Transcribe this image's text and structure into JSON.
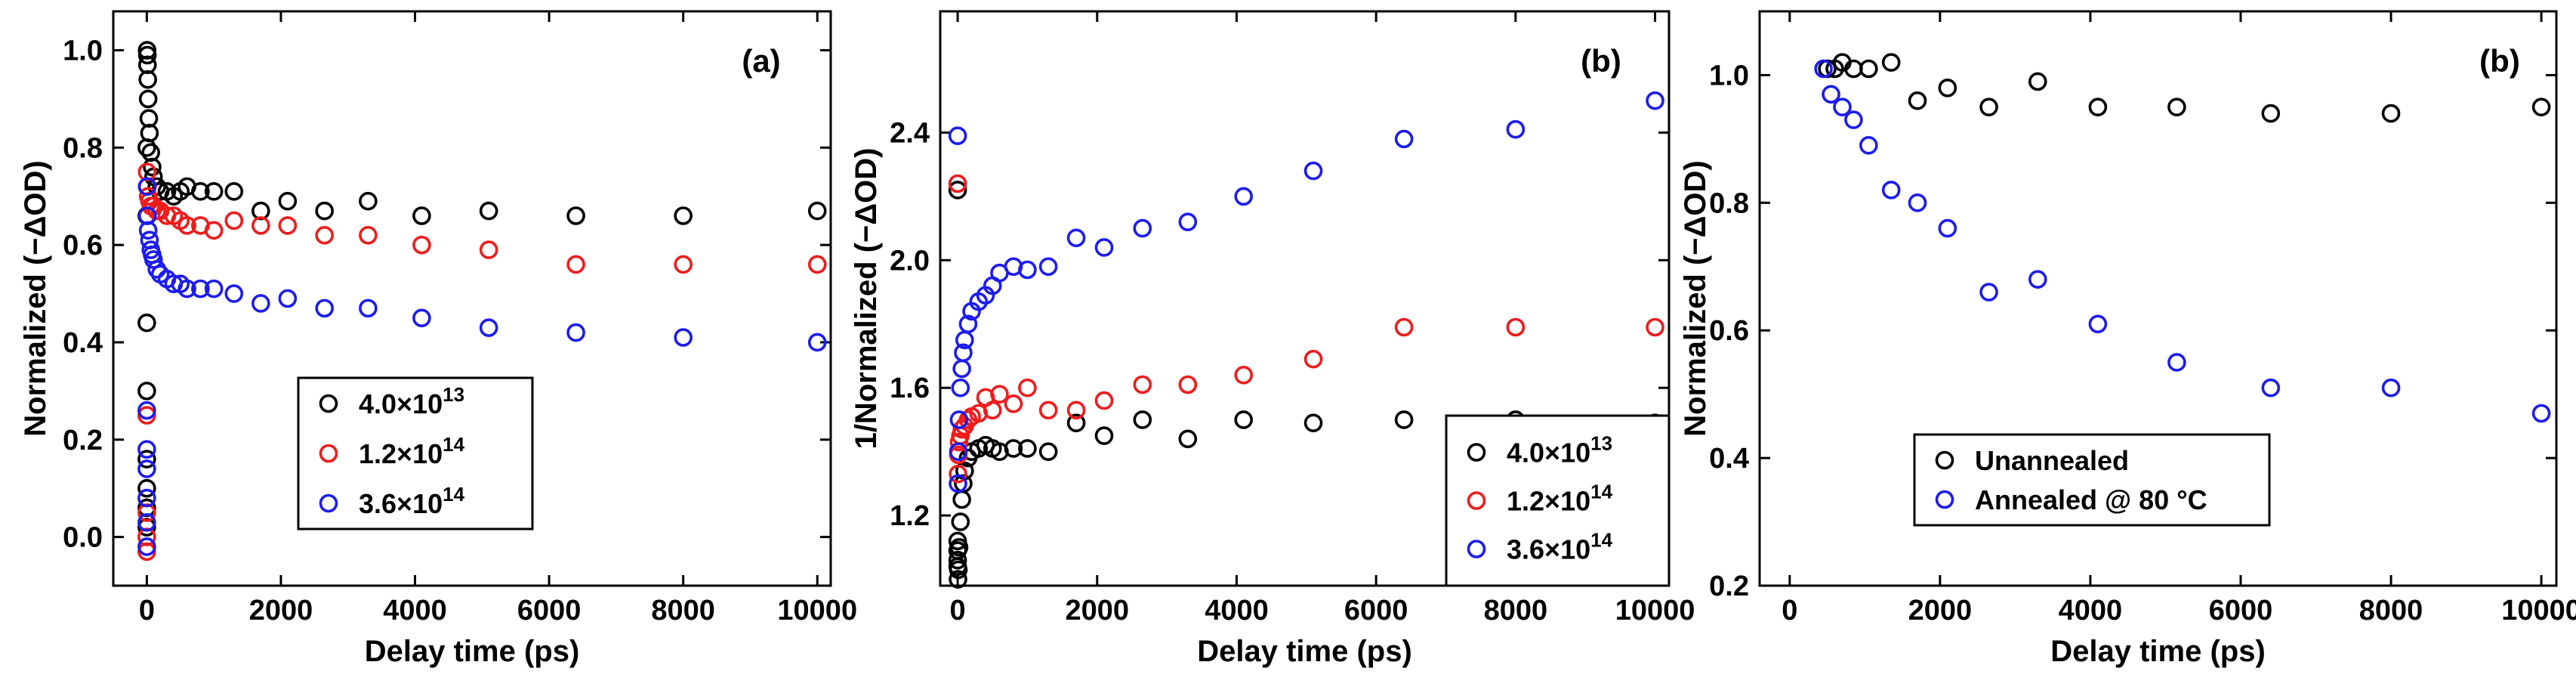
{
  "chart_data": [
    {
      "type": "scatter",
      "panel_label": "(a)",
      "xlabel": "Delay time (ps)",
      "ylabel": "Normalized (−ΔOD)",
      "xlim": [
        -500,
        10200
      ],
      "ylim": [
        -0.1,
        1.08
      ],
      "xticks": [
        0,
        2000,
        4000,
        6000,
        8000,
        10000
      ],
      "yticks": [
        0.0,
        0.2,
        0.4,
        0.6,
        0.8,
        1.0
      ],
      "xtick_labels": [
        "0",
        "2000",
        "4000",
        "6000",
        "8000",
        "10000"
      ],
      "ytick_labels": [
        "0.0",
        "0.2",
        "0.4",
        "0.6",
        "0.8",
        "1.0"
      ],
      "legend_position": "center-left",
      "series": [
        {
          "name": "4.0×10",
          "name_sup": "13",
          "color": "#000000",
          "x": [
            0,
            0,
            0,
            0,
            0,
            0,
            0,
            0,
            5,
            8,
            10,
            15,
            20,
            30,
            40,
            60,
            80,
            100,
            150,
            200,
            300,
            400,
            500,
            600,
            800,
            1000,
            1300,
            1700,
            2100,
            2650,
            3300,
            4100,
            5100,
            6400,
            8000,
            10000
          ],
          "y": [
            0.02,
            0.06,
            0.1,
            0.16,
            0.3,
            0.44,
            0.66,
            0.8,
            1.0,
            0.99,
            0.97,
            0.94,
            0.9,
            0.86,
            0.83,
            0.79,
            0.76,
            0.74,
            0.72,
            0.71,
            0.71,
            0.7,
            0.71,
            0.72,
            0.71,
            0.71,
            0.71,
            0.67,
            0.69,
            0.67,
            0.69,
            0.66,
            0.67,
            0.66,
            0.66,
            0.67
          ]
        },
        {
          "name": "1.2×10",
          "name_sup": "14",
          "color": "#ee1c1c",
          "x": [
            0,
            0,
            0,
            0,
            5,
            10,
            20,
            40,
            60,
            100,
            150,
            200,
            300,
            400,
            500,
            600,
            800,
            1000,
            1300,
            1700,
            2100,
            2650,
            3300,
            4100,
            5100,
            6400,
            8000,
            10000
          ],
          "y": [
            -0.03,
            0.0,
            0.05,
            0.25,
            0.75,
            0.72,
            0.7,
            0.69,
            0.68,
            0.68,
            0.67,
            0.67,
            0.66,
            0.66,
            0.65,
            0.64,
            0.64,
            0.63,
            0.65,
            0.64,
            0.64,
            0.62,
            0.62,
            0.6,
            0.59,
            0.56,
            0.56,
            0.56
          ]
        },
        {
          "name": "3.6×10",
          "name_sup": "14",
          "color": "#1c1cee",
          "x": [
            0,
            0,
            0,
            0,
            0,
            0,
            5,
            10,
            20,
            40,
            60,
            80,
            100,
            150,
            200,
            300,
            400,
            500,
            600,
            800,
            1000,
            1300,
            1700,
            2100,
            2650,
            3300,
            4100,
            5100,
            6400,
            8000,
            10000
          ],
          "y": [
            -0.02,
            0.03,
            0.08,
            0.14,
            0.18,
            0.26,
            0.72,
            0.66,
            0.63,
            0.61,
            0.59,
            0.58,
            0.57,
            0.55,
            0.54,
            0.53,
            0.52,
            0.52,
            0.51,
            0.51,
            0.51,
            0.5,
            0.48,
            0.49,
            0.47,
            0.47,
            0.45,
            0.43,
            0.42,
            0.41,
            0.4
          ]
        }
      ]
    },
    {
      "type": "scatter",
      "panel_label": "(b)",
      "xlabel": "Delay time (ps)",
      "ylabel": "1/Normalized (−ΔOD)",
      "xlim": [
        -250,
        10200
      ],
      "ylim": [
        0.98,
        2.78
      ],
      "xticks": [
        0,
        2000,
        4000,
        6000,
        8000,
        10000
      ],
      "yticks": [
        1.2,
        1.6,
        2.0,
        2.4
      ],
      "xtick_labels": [
        "0",
        "2000",
        "4000",
        "6000",
        "8000",
        "10000"
      ],
      "ytick_labels": [
        "1.2",
        "1.6",
        "2.0",
        "2.4"
      ],
      "legend_position": "bottom-right",
      "series": [
        {
          "name": "4.0×10",
          "name_sup": "13",
          "color": "#000000",
          "x": [
            0,
            0,
            0,
            0,
            0,
            5,
            10,
            20,
            40,
            60,
            80,
            100,
            150,
            200,
            300,
            400,
            500,
            600,
            800,
            1000,
            1300,
            1700,
            2100,
            2650,
            3300,
            4100,
            5100,
            6400,
            8000,
            10000
          ],
          "y": [
            2.22,
            1.04,
            1.06,
            1.09,
            1.12,
            1.0,
            1.03,
            1.1,
            1.18,
            1.25,
            1.3,
            1.34,
            1.38,
            1.4,
            1.41,
            1.42,
            1.41,
            1.4,
            1.41,
            1.41,
            1.4,
            1.49,
            1.45,
            1.5,
            1.44,
            1.5,
            1.49,
            1.5,
            1.5,
            1.49
          ]
        },
        {
          "name": "1.2×10",
          "name_sup": "14",
          "color": "#ee1c1c",
          "x": [
            0,
            5,
            10,
            20,
            40,
            60,
            100,
            150,
            200,
            300,
            400,
            500,
            600,
            800,
            1000,
            1300,
            1700,
            2100,
            2650,
            3300,
            4100,
            5100,
            6400,
            8000,
            10000
          ],
          "y": [
            2.24,
            1.33,
            1.39,
            1.43,
            1.45,
            1.47,
            1.48,
            1.5,
            1.51,
            1.52,
            1.57,
            1.53,
            1.58,
            1.55,
            1.6,
            1.53,
            1.53,
            1.56,
            1.61,
            1.61,
            1.64,
            1.69,
            1.79,
            1.79,
            1.79
          ]
        },
        {
          "name": "3.6×10",
          "name_sup": "14",
          "color": "#1c1cee",
          "x": [
            0,
            5,
            10,
            20,
            40,
            60,
            80,
            100,
            150,
            200,
            300,
            400,
            500,
            600,
            800,
            1000,
            1300,
            1700,
            2100,
            2650,
            3300,
            4100,
            5100,
            6400,
            8000,
            10000
          ],
          "y": [
            2.39,
            1.3,
            1.4,
            1.5,
            1.6,
            1.66,
            1.71,
            1.75,
            1.8,
            1.84,
            1.87,
            1.89,
            1.92,
            1.96,
            1.98,
            1.97,
            1.98,
            2.07,
            2.04,
            2.1,
            2.12,
            2.2,
            2.28,
            2.38,
            2.41,
            2.5
          ]
        }
      ]
    },
    {
      "type": "scatter",
      "panel_label": "(b)",
      "xlabel": "Delay time (ps)",
      "ylabel": "Normalized (−ΔOD)",
      "xlim": [
        -400,
        10200
      ],
      "ylim": [
        0.2,
        1.1
      ],
      "xticks": [
        0,
        2000,
        4000,
        6000,
        8000,
        10000
      ],
      "yticks": [
        0.2,
        0.4,
        0.6,
        0.8,
        1.0
      ],
      "xtick_labels": [
        "0",
        "2000",
        "4000",
        "6000",
        "8000",
        "10000"
      ],
      "ytick_labels": [
        "0.2",
        "0.4",
        "0.6",
        "0.8",
        "1.0"
      ],
      "legend_position": "bottom-left",
      "series": [
        {
          "name": "Unannealed",
          "name_sup": "",
          "color": "#000000",
          "x": [
            500,
            600,
            700,
            850,
            1050,
            1350,
            1700,
            2100,
            2650,
            3300,
            4100,
            5150,
            6400,
            8000,
            10000
          ],
          "y": [
            1.01,
            1.01,
            1.02,
            1.01,
            1.01,
            1.02,
            0.96,
            0.98,
            0.95,
            0.99,
            0.95,
            0.95,
            0.94,
            0.94,
            0.95
          ]
        },
        {
          "name": "Annealed @ 80 °C",
          "name_sup": "",
          "color": "#1c1cee",
          "x": [
            450,
            550,
            700,
            850,
            1050,
            1350,
            1700,
            2100,
            2650,
            3300,
            4100,
            5150,
            6400,
            8000,
            10000
          ],
          "y": [
            1.01,
            0.97,
            0.95,
            0.93,
            0.89,
            0.82,
            0.8,
            0.76,
            0.66,
            0.68,
            0.61,
            0.55,
            0.51,
            0.51,
            0.47
          ]
        }
      ]
    }
  ]
}
